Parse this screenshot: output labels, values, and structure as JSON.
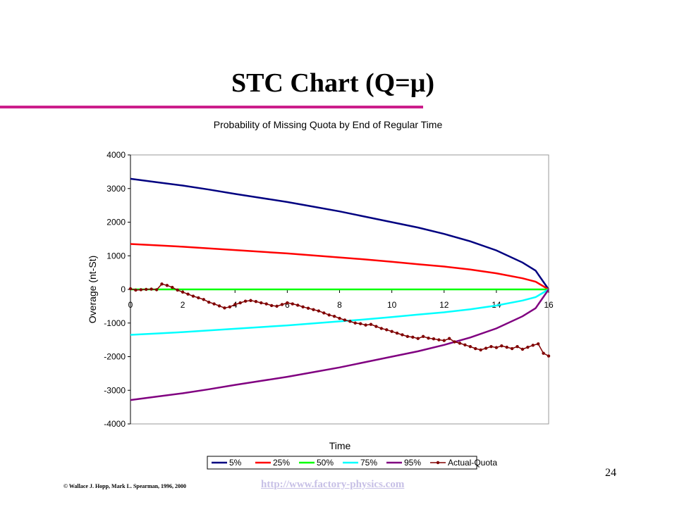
{
  "slide": {
    "title_prefix": "STC Chart (Q=",
    "title_symbol": "μ",
    "title_suffix": ")",
    "page_number": "24",
    "copyright": "© Wallace J. Hopp, Mark L. Spearman, 1996, 2000",
    "link": "http://www.factory-physics.com",
    "accent_color": "#cc1d8b"
  },
  "chart_data": {
    "type": "line",
    "title": "Probability of Missing Quota by End of Regular Time",
    "xlabel": "Time",
    "ylabel": "Overage (nt-St)",
    "xlim": [
      0,
      16
    ],
    "ylim": [
      -4000,
      4000
    ],
    "x_ticks": [
      0,
      2,
      4,
      6,
      8,
      10,
      12,
      14,
      16
    ],
    "y_ticks": [
      4000,
      3000,
      2000,
      1000,
      0,
      -1000,
      -2000,
      -3000,
      -4000
    ],
    "grid": false,
    "legend_position": "bottom",
    "series": [
      {
        "name": "5%",
        "color": "#000080",
        "x": [
          0,
          1,
          2,
          3,
          4,
          5,
          6,
          7,
          8,
          9,
          10,
          11,
          12,
          13,
          14,
          15,
          15.5,
          16
        ],
        "values": [
          3290,
          3190,
          3090,
          2970,
          2840,
          2720,
          2600,
          2460,
          2320,
          2160,
          2000,
          1840,
          1650,
          1430,
          1160,
          800,
          560,
          0
        ]
      },
      {
        "name": "25%",
        "color": "#ff0000",
        "x": [
          0,
          1,
          2,
          3,
          4,
          5,
          6,
          7,
          8,
          9,
          10,
          11,
          12,
          13,
          14,
          15,
          15.5,
          16
        ],
        "values": [
          1350,
          1310,
          1270,
          1220,
          1170,
          1120,
          1070,
          1010,
          950,
          890,
          820,
          750,
          680,
          590,
          480,
          330,
          230,
          0
        ]
      },
      {
        "name": "50%",
        "color": "#00ff00",
        "x": [
          0,
          16
        ],
        "values": [
          0,
          0
        ]
      },
      {
        "name": "75%",
        "color": "#00ffff",
        "x": [
          0,
          1,
          2,
          3,
          4,
          5,
          6,
          7,
          8,
          9,
          10,
          11,
          12,
          13,
          14,
          15,
          15.5,
          16
        ],
        "values": [
          -1350,
          -1310,
          -1270,
          -1220,
          -1170,
          -1120,
          -1070,
          -1010,
          -950,
          -890,
          -820,
          -750,
          -680,
          -590,
          -480,
          -330,
          -230,
          0
        ]
      },
      {
        "name": "95%",
        "color": "#800080",
        "x": [
          0,
          1,
          2,
          3,
          4,
          5,
          6,
          7,
          8,
          9,
          10,
          11,
          12,
          13,
          14,
          15,
          15.5,
          16
        ],
        "values": [
          -3290,
          -3190,
          -3090,
          -2970,
          -2840,
          -2720,
          -2600,
          -2460,
          -2320,
          -2160,
          -2000,
          -1840,
          -1650,
          -1430,
          -1160,
          -800,
          -560,
          0
        ]
      },
      {
        "name": "Actual-Quota",
        "color": "#800000",
        "markers": true,
        "x": [
          0,
          0.2,
          0.4,
          0.6,
          0.8,
          1.0,
          1.2,
          1.4,
          1.6,
          1.8,
          2.0,
          2.2,
          2.4,
          2.6,
          2.8,
          3.0,
          3.2,
          3.4,
          3.6,
          3.8,
          4.0,
          4.2,
          4.4,
          4.6,
          4.8,
          5.0,
          5.2,
          5.4,
          5.6,
          5.8,
          6.0,
          6.2,
          6.4,
          6.6,
          6.8,
          7.0,
          7.2,
          7.4,
          7.6,
          7.8,
          8.0,
          8.2,
          8.4,
          8.6,
          8.8,
          9.0,
          9.2,
          9.4,
          9.6,
          9.8,
          10.0,
          10.2,
          10.4,
          10.6,
          10.8,
          11.0,
          11.2,
          11.4,
          11.6,
          11.8,
          12.0,
          12.2,
          12.4,
          12.6,
          12.8,
          13.0,
          13.2,
          13.4,
          13.6,
          13.8,
          14.0,
          14.2,
          14.4,
          14.6,
          14.8,
          15.0,
          15.2,
          15.4,
          15.6,
          15.8,
          16.0
        ],
        "values": [
          20,
          -20,
          -10,
          0,
          10,
          -10,
          160,
          120,
          60,
          -20,
          -80,
          -140,
          -200,
          -250,
          -300,
          -380,
          -430,
          -490,
          -550,
          -520,
          -450,
          -400,
          -350,
          -330,
          -360,
          -400,
          -430,
          -480,
          -500,
          -450,
          -400,
          -430,
          -470,
          -520,
          -560,
          -600,
          -640,
          -700,
          -760,
          -800,
          -860,
          -910,
          -950,
          -1000,
          -1020,
          -1060,
          -1040,
          -1100,
          -1160,
          -1200,
          -1250,
          -1300,
          -1350,
          -1400,
          -1420,
          -1460,
          -1400,
          -1450,
          -1470,
          -1500,
          -1520,
          -1460,
          -1560,
          -1600,
          -1650,
          -1700,
          -1760,
          -1800,
          -1750,
          -1700,
          -1730,
          -1680,
          -1720,
          -1760,
          -1700,
          -1780,
          -1720,
          -1660,
          -1620,
          -1900,
          -1980
        ]
      }
    ]
  }
}
